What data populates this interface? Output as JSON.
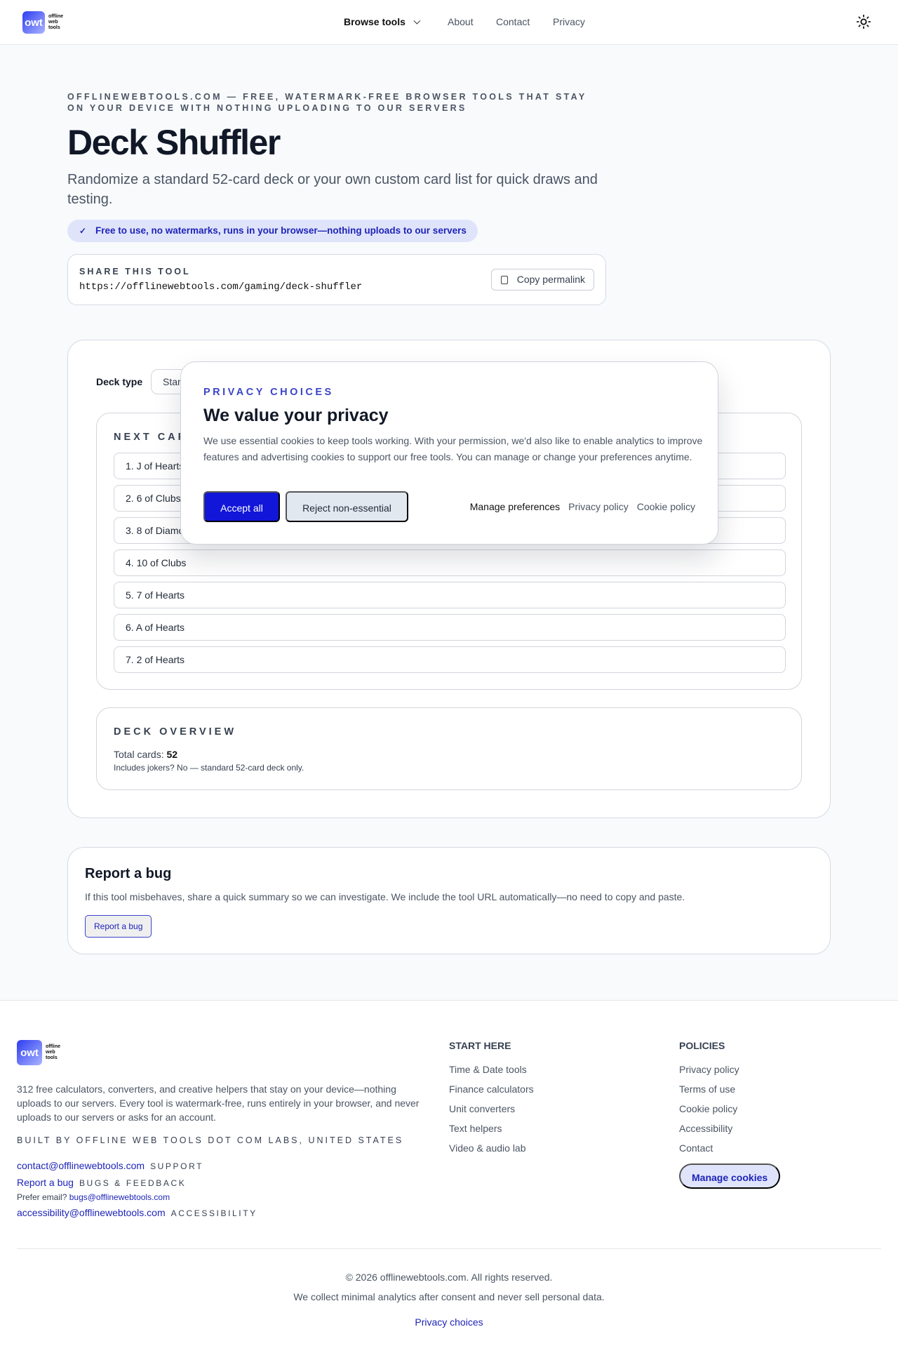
{
  "header": {
    "logo_mark": "owt",
    "logo_words": [
      "offline",
      "web",
      "tools"
    ],
    "nav": [
      {
        "label": "Browse tools"
      },
      {
        "label": "About"
      },
      {
        "label": "Contact"
      },
      {
        "label": "Privacy"
      }
    ],
    "theme_icon": "sun-icon"
  },
  "hero": {
    "eyebrow": "OFFLINEWEBTOOLS.COM — FREE, WATERMARK-FREE BROWSER TOOLS THAT STAY ON YOUR DEVICE WITH NOTHING UPLOADING TO OUR SERVERS",
    "title": "Deck Shuffler",
    "subtitle": "Randomize a standard 52-card deck or your own custom card list for quick draws and testing.",
    "badge": "Free to use, no watermarks, runs in your browser—nothing uploads to our servers"
  },
  "share": {
    "label": "SHARE THIS TOOL",
    "url": "https://offlinewebtools.com/gaming/deck-shuffler",
    "copy_label": "Copy permalink"
  },
  "tool": {
    "deck_type_label": "Deck type",
    "deck_type_value": "Standard",
    "next_cards_title": "NEXT CARDS",
    "cards": [
      "1. J of Hearts",
      "2. 6 of Clubs",
      "3. 8 of Diamonds",
      "4. 10 of Clubs",
      "5. 7 of Hearts",
      "6. A of Hearts",
      "7. 2 of Hearts"
    ],
    "overview": {
      "title": "DECK OVERVIEW",
      "total_label": "Total cards:",
      "total_value": "52",
      "jokers": "Includes jokers? No — standard 52-card deck only."
    }
  },
  "modal": {
    "eyebrow": "PRIVACY CHOICES",
    "title": "We value your privacy",
    "body": "We use essential cookies to keep tools working. With your permission, we'd also like to enable analytics to improve features and advertising cookies to support our free tools. You can manage or change your preferences anytime.",
    "accept": "Accept all",
    "reject": "Reject non-essential",
    "links": [
      "Manage preferences",
      "Privacy policy",
      "Cookie policy"
    ]
  },
  "report": {
    "title": "Report a bug",
    "body": "If this tool misbehaves, share a quick summary so we can investigate. We include the tool URL automatically—no need to copy and paste.",
    "button": "Report a bug"
  },
  "footer": {
    "desc": "312 free calculators, converters, and creative helpers that stay on your device—nothing uploads to our servers. Every tool is watermark-free, runs entirely in your browser, and never uploads to our servers or asks for an account.",
    "built": "BUILT BY OFFLINE WEB TOOLS DOT COM LABS, UNITED STATES",
    "contact": {
      "link": "contact@offlinewebtools.com",
      "tag": "SUPPORT"
    },
    "bug": {
      "link": "Report a bug",
      "tag": "BUGS & FEEDBACK"
    },
    "prefer": "Prefer email?",
    "bug_email": "bugs@offlinewebtools.com",
    "a11y": {
      "link": "accessibility@offlinewebtools.com",
      "tag": "ACCESSIBILITY"
    },
    "start_title": "START HERE",
    "start_links": [
      "Time & Date tools",
      "Finance calculators",
      "Unit converters",
      "Text helpers",
      "Video & audio lab"
    ],
    "policies_title": "POLICIES",
    "policy_links": [
      "Privacy policy",
      "Terms of use",
      "Cookie policy",
      "Accessibility",
      "Contact"
    ],
    "manage_cookies": "Manage cookies",
    "copyright": "© 2026 offlinewebtools.com. All rights reserved.",
    "analytics_note": "We collect minimal analytics after consent and never sell personal data.",
    "privacy_choices": "Privacy choices"
  }
}
